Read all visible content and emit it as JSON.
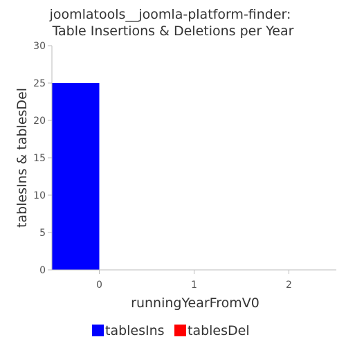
{
  "chart_data": {
    "type": "bar",
    "title_lines": [
      "joomlatools__joomla-platform-finder:",
      "Table Insertions & Deletions per Year"
    ],
    "xlabel": "runningYearFromV0",
    "ylabel": "tablesIns & tablesDel",
    "categories": [
      "0",
      "1",
      "2"
    ],
    "series": [
      {
        "name": "tablesIns",
        "color": "#0000ff",
        "values": [
          25,
          0,
          0
        ]
      },
      {
        "name": "tablesDel",
        "color": "#ff0000",
        "values": [
          0,
          0,
          0
        ]
      }
    ],
    "ylim": [
      0,
      30
    ],
    "yticks": [
      0,
      5,
      10,
      15,
      20,
      25,
      30
    ],
    "xlim": [
      -0.5,
      2.5
    ],
    "grid": false,
    "legend_position": "bottom"
  }
}
